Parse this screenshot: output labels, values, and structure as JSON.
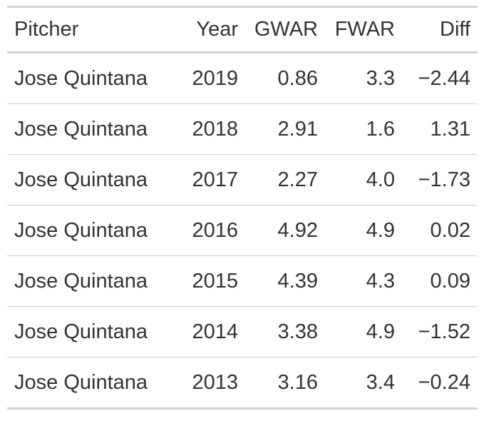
{
  "table": {
    "headers": {
      "pitcher": "Pitcher",
      "year": "Year",
      "gwar": "GWAR",
      "fwar": "FWAR",
      "diff": "Diff"
    },
    "rows": [
      {
        "pitcher": "Jose Quintana",
        "year": "2019",
        "gwar": "0.86",
        "fwar": "3.3",
        "diff": "−2.44"
      },
      {
        "pitcher": "Jose Quintana",
        "year": "2018",
        "gwar": "2.91",
        "fwar": "1.6",
        "diff": "1.31"
      },
      {
        "pitcher": "Jose Quintana",
        "year": "2017",
        "gwar": "2.27",
        "fwar": "4.0",
        "diff": "−1.73"
      },
      {
        "pitcher": "Jose Quintana",
        "year": "2016",
        "gwar": "4.92",
        "fwar": "4.9",
        "diff": "0.02"
      },
      {
        "pitcher": "Jose Quintana",
        "year": "2015",
        "gwar": "4.39",
        "fwar": "4.3",
        "diff": "0.09"
      },
      {
        "pitcher": "Jose Quintana",
        "year": "2014",
        "gwar": "3.38",
        "fwar": "4.9",
        "diff": "−1.52"
      },
      {
        "pitcher": "Jose Quintana",
        "year": "2013",
        "gwar": "3.16",
        "fwar": "3.4",
        "diff": "−0.24"
      }
    ]
  }
}
